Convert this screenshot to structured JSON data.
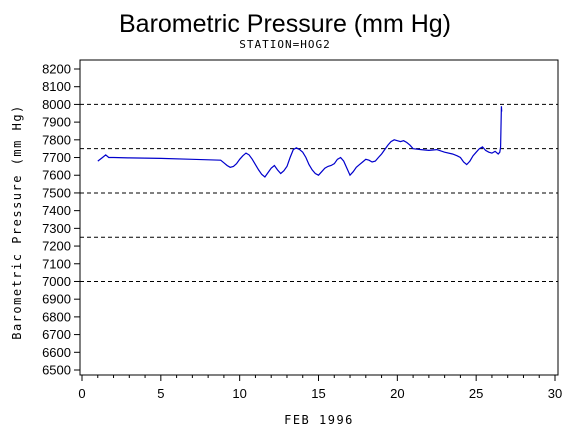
{
  "chart_data": {
    "type": "line",
    "title": "Barometric Pressure (mm Hg)",
    "subtitle": "STATION=HOG2",
    "xlabel": "FEB 1996",
    "ylabel": "Barometric Pressure (mm Hg)",
    "xlim": [
      0,
      30
    ],
    "ylim": [
      6500,
      8200
    ],
    "xticks": [
      0,
      5,
      10,
      15,
      20,
      25,
      30
    ],
    "yticks": [
      6500,
      6600,
      6700,
      6800,
      6900,
      7000,
      7100,
      7200,
      7300,
      7400,
      7500,
      7600,
      7700,
      7800,
      7900,
      8000,
      8100,
      8200
    ],
    "reference_lines": [
      7000,
      7250,
      7500,
      7750,
      8000
    ],
    "grid": false,
    "line_color": "#0000cc",
    "series": [
      {
        "x": [
          1.0,
          1.3,
          1.5,
          1.7,
          2.0,
          3.0,
          5.0,
          7.0,
          8.8,
          9.0,
          9.2,
          9.4,
          9.6,
          9.8,
          10.0,
          10.2,
          10.4,
          10.6,
          10.8,
          11.0,
          11.2,
          11.4,
          11.6,
          11.8,
          12.0,
          12.2,
          12.4,
          12.6,
          12.8,
          13.0,
          13.2,
          13.4,
          13.6,
          13.8,
          14.0,
          14.2,
          14.4,
          14.6,
          14.8,
          15.0,
          15.2,
          15.4,
          15.6,
          15.8,
          16.0,
          16.2,
          16.4,
          16.6,
          16.8,
          17.0,
          17.2,
          17.4,
          17.6,
          17.8,
          18.0,
          18.2,
          18.4,
          18.6,
          18.8,
          19.0,
          19.2,
          19.4,
          19.6,
          19.8,
          20.0,
          20.2,
          20.4,
          20.6,
          20.8,
          21.0,
          21.5,
          22.0,
          22.5,
          23.0,
          23.5,
          23.8,
          24.0,
          24.2,
          24.4,
          24.6,
          24.8,
          25.0,
          25.2,
          25.4,
          25.6,
          25.8,
          26.0,
          26.2,
          26.4,
          26.5,
          26.55,
          26.6,
          26.62
        ],
        "y": [
          7680,
          7700,
          7715,
          7700,
          7700,
          7698,
          7695,
          7690,
          7685,
          7670,
          7655,
          7645,
          7650,
          7665,
          7690,
          7710,
          7725,
          7715,
          7690,
          7660,
          7630,
          7605,
          7590,
          7615,
          7640,
          7655,
          7630,
          7610,
          7625,
          7650,
          7700,
          7745,
          7755,
          7745,
          7730,
          7700,
          7660,
          7630,
          7610,
          7600,
          7620,
          7640,
          7650,
          7655,
          7665,
          7690,
          7700,
          7680,
          7640,
          7600,
          7620,
          7645,
          7660,
          7675,
          7690,
          7685,
          7675,
          7680,
          7700,
          7720,
          7745,
          7770,
          7790,
          7800,
          7795,
          7790,
          7795,
          7785,
          7770,
          7750,
          7745,
          7740,
          7745,
          7730,
          7720,
          7710,
          7700,
          7675,
          7660,
          7680,
          7710,
          7730,
          7750,
          7760,
          7740,
          7730,
          7725,
          7735,
          7720,
          7730,
          7760,
          7990,
          7960
        ]
      }
    ]
  }
}
